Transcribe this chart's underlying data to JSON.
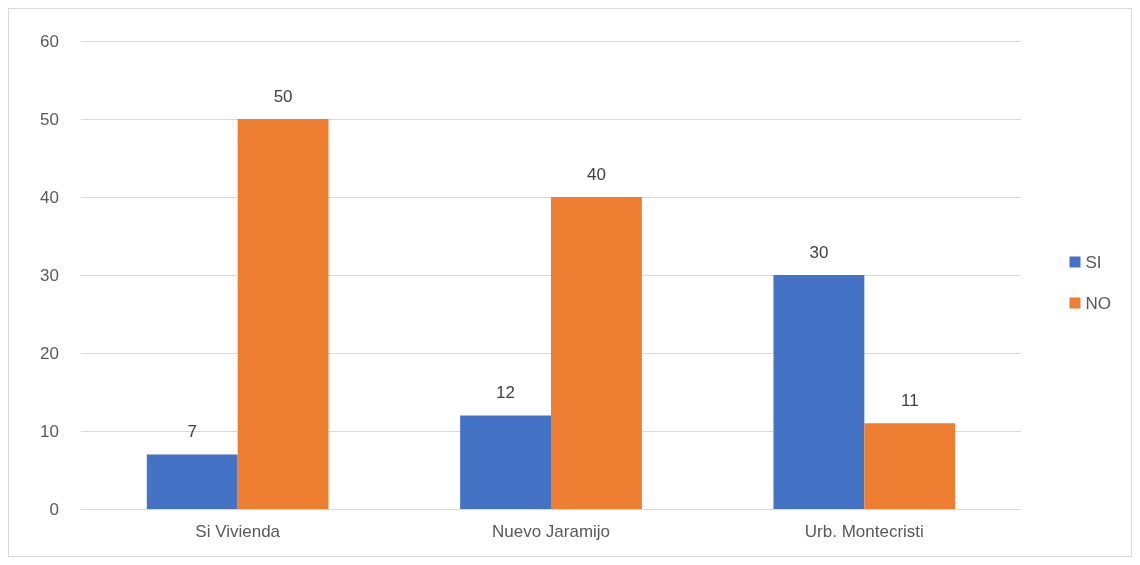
{
  "chart_data": {
    "type": "bar",
    "categories": [
      "Si Vivienda",
      "Nuevo Jaramijo",
      "Urb. Montecristi"
    ],
    "series": [
      {
        "name": "SI",
        "color": "#4472c4",
        "values": [
          7,
          12,
          30
        ]
      },
      {
        "name": "NO",
        "color": "#ed7d31",
        "values": [
          50,
          40,
          11
        ]
      }
    ],
    "ylim": [
      0,
      60
    ],
    "yticks": [
      0,
      10,
      20,
      30,
      40,
      50,
      60
    ],
    "grid": "y",
    "legend": "right",
    "data_labels": true
  }
}
